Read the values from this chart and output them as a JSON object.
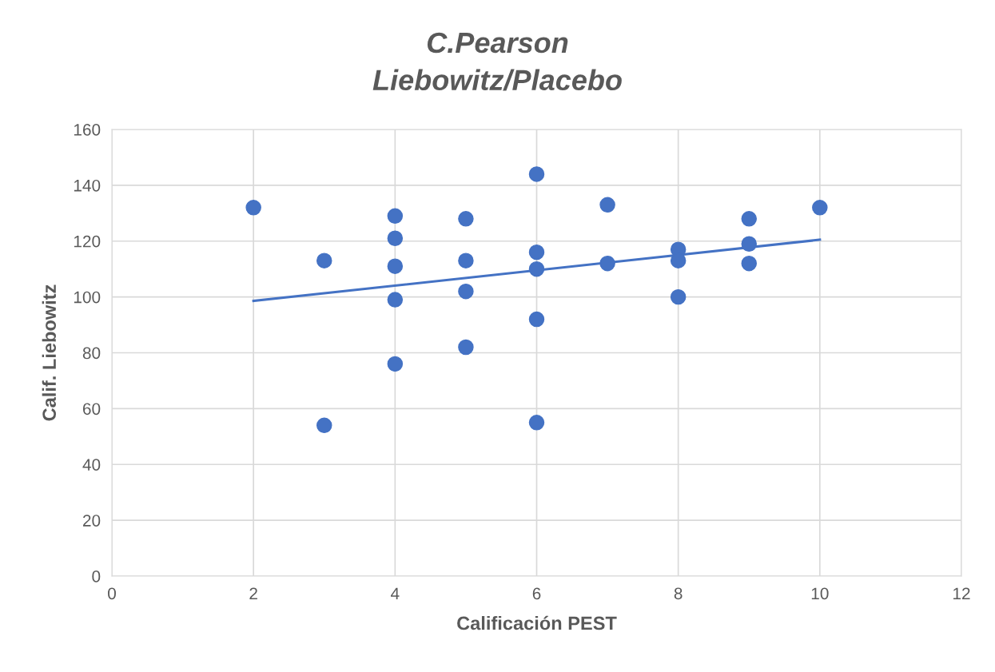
{
  "chart_data": {
    "type": "scatter",
    "title": "C.Pearson\nLiebowitz/Placebo",
    "xlabel": "Calificación PEST",
    "ylabel": "Calif. Liebowitz",
    "series": [
      {
        "color": "#4472c4",
        "marker": "circle",
        "x": [
          2,
          3,
          3,
          4,
          4,
          4,
          4,
          4,
          5,
          5,
          5,
          5,
          6,
          6,
          6,
          6,
          6,
          7,
          7,
          8,
          8,
          8,
          9,
          9,
          9,
          10
        ],
        "values": [
          132,
          113,
          54,
          129,
          121,
          111,
          99,
          76,
          128,
          113,
          102,
          82,
          144,
          116,
          110,
          92,
          55,
          133,
          112,
          117,
          113,
          100,
          128,
          119,
          112,
          132
        ]
      },
      {
        "type": "line",
        "color": "#4472c4",
        "marker": "none",
        "line_style": "solid",
        "x": [
          2,
          10
        ],
        "values": [
          98.6,
          120.5
        ]
      }
    ],
    "xlim": [
      0,
      12
    ],
    "xticks": [
      0,
      2,
      4,
      6,
      8,
      10,
      12
    ],
    "ylim": [
      0,
      160
    ],
    "yticks": [
      0,
      20,
      40,
      60,
      80,
      100,
      120,
      140,
      160
    ],
    "grid": true,
    "legend": false
  }
}
